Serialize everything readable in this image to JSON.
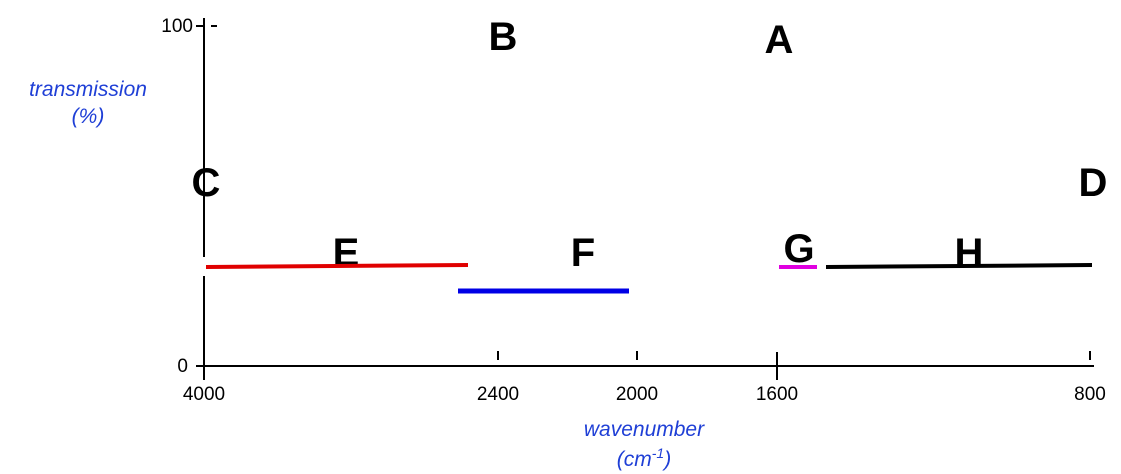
{
  "colors": {
    "axis": "#000000",
    "axis_title": "#1f3fd6",
    "segment_E": "#e00000",
    "segment_F": "#0000e6",
    "segment_G": "#e000e0",
    "segment_H": "#000000"
  },
  "y_axis": {
    "title_line1": "transmission",
    "title_line2": "(%)",
    "tick_100": "100",
    "tick_0": "0"
  },
  "x_axis": {
    "title_line1": "wavenumber",
    "title_line2_base": "(cm",
    "title_line2_sup": "-1",
    "title_line2_end": ")",
    "tick_4000": "4000",
    "tick_2400": "2400",
    "tick_2000": "2000",
    "tick_1600": "1600",
    "tick_800": "800"
  },
  "regions": {
    "A": "A",
    "B": "B",
    "C": "C",
    "D": "D",
    "E": "E",
    "F": "F",
    "G": "G",
    "H": "H"
  }
}
